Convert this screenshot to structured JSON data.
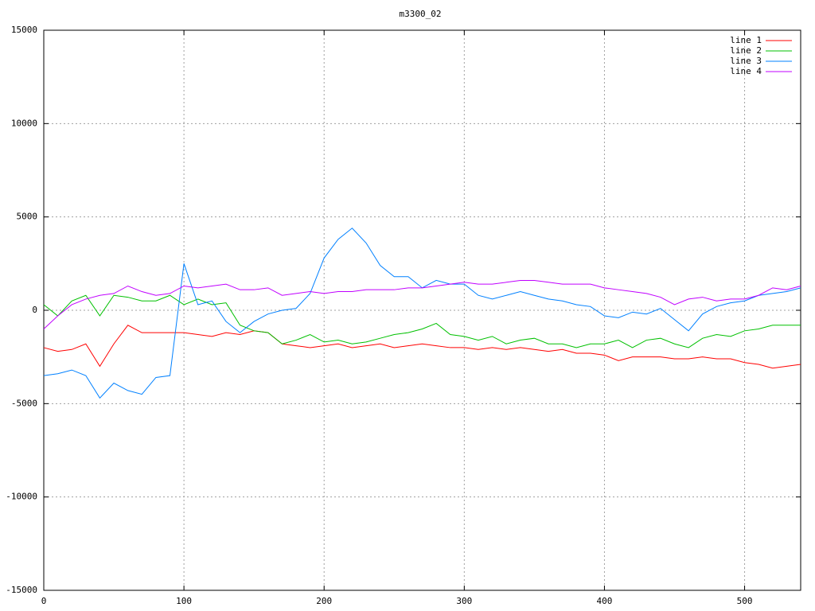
{
  "chart_data": {
    "type": "line",
    "title": "m3300_02",
    "x": [
      0,
      10,
      20,
      30,
      40,
      50,
      60,
      70,
      80,
      90,
      100,
      110,
      120,
      130,
      140,
      150,
      160,
      170,
      180,
      190,
      200,
      210,
      220,
      230,
      240,
      250,
      260,
      270,
      280,
      290,
      300,
      310,
      320,
      330,
      340,
      350,
      360,
      370,
      380,
      390,
      400,
      410,
      420,
      430,
      440,
      450,
      460,
      470,
      480,
      490,
      500,
      510,
      520,
      530,
      540
    ],
    "series": [
      {
        "name": "line 1",
        "color": "#ff0000",
        "values": [
          -2000,
          -2200,
          -2100,
          -1800,
          -3000,
          -1800,
          -800,
          -1200,
          -1200,
          -1200,
          -1200,
          -1300,
          -1400,
          -1200,
          -1300,
          -1100,
          -1200,
          -1800,
          -1900,
          -2000,
          -1900,
          -1800,
          -2000,
          -1900,
          -1800,
          -2000,
          -1900,
          -1800,
          -1900,
          -2000,
          -2000,
          -2100,
          -2000,
          -2100,
          -2000,
          -2100,
          -2200,
          -2100,
          -2300,
          -2300,
          -2400,
          -2700,
          -2500,
          -2500,
          -2500,
          -2600,
          -2600,
          -2500,
          -2600,
          -2600,
          -2800,
          -2900,
          -3100,
          -3000,
          -2900
        ]
      },
      {
        "name": "line 2",
        "color": "#00c000",
        "values": [
          300,
          -300,
          500,
          800,
          -300,
          800,
          700,
          500,
          500,
          800,
          300,
          600,
          300,
          400,
          -800,
          -1100,
          -1200,
          -1800,
          -1600,
          -1300,
          -1700,
          -1600,
          -1800,
          -1700,
          -1500,
          -1300,
          -1200,
          -1000,
          -700,
          -1300,
          -1400,
          -1600,
          -1400,
          -1800,
          -1600,
          -1500,
          -1800,
          -1800,
          -2000,
          -1800,
          -1800,
          -1600,
          -2000,
          -1600,
          -1500,
          -1800,
          -2000,
          -1500,
          -1300,
          -1400,
          -1100,
          -1000,
          -800,
          -800,
          -800
        ]
      },
      {
        "name": "line 3",
        "color": "#0080ff",
        "values": [
          -3500,
          -3400,
          -3200,
          -3500,
          -4700,
          -3900,
          -4300,
          -4500,
          -3600,
          -3500,
          2500,
          300,
          500,
          -600,
          -1200,
          -600,
          -200,
          0,
          100,
          900,
          2800,
          3800,
          4400,
          3600,
          2400,
          1800,
          1800,
          1200,
          1600,
          1400,
          1400,
          800,
          600,
          800,
          1000,
          800,
          600,
          500,
          300,
          200,
          -300,
          -400,
          -100,
          -200,
          100,
          -500,
          -1100,
          -200,
          200,
          400,
          500,
          800,
          900,
          1000,
          1200
        ]
      },
      {
        "name": "line 4",
        "color": "#c000ff",
        "values": [
          -1000,
          -300,
          300,
          600,
          800,
          900,
          1300,
          1000,
          800,
          900,
          1300,
          1200,
          1300,
          1400,
          1100,
          1100,
          1200,
          800,
          900,
          1000,
          900,
          1000,
          1000,
          1100,
          1100,
          1100,
          1200,
          1200,
          1300,
          1400,
          1500,
          1400,
          1400,
          1500,
          1600,
          1600,
          1500,
          1400,
          1400,
          1400,
          1200,
          1100,
          1000,
          900,
          700,
          300,
          600,
          700,
          500,
          600,
          600,
          800,
          1200,
          1100,
          1300
        ]
      }
    ],
    "xlim": [
      0,
      540
    ],
    "ylim": [
      -15000,
      15000
    ],
    "xticks": [
      0,
      100,
      200,
      300,
      400,
      500
    ],
    "yticks": [
      -15000,
      -10000,
      -5000,
      0,
      5000,
      10000,
      15000
    ],
    "grid": true,
    "legend": "top-right"
  }
}
